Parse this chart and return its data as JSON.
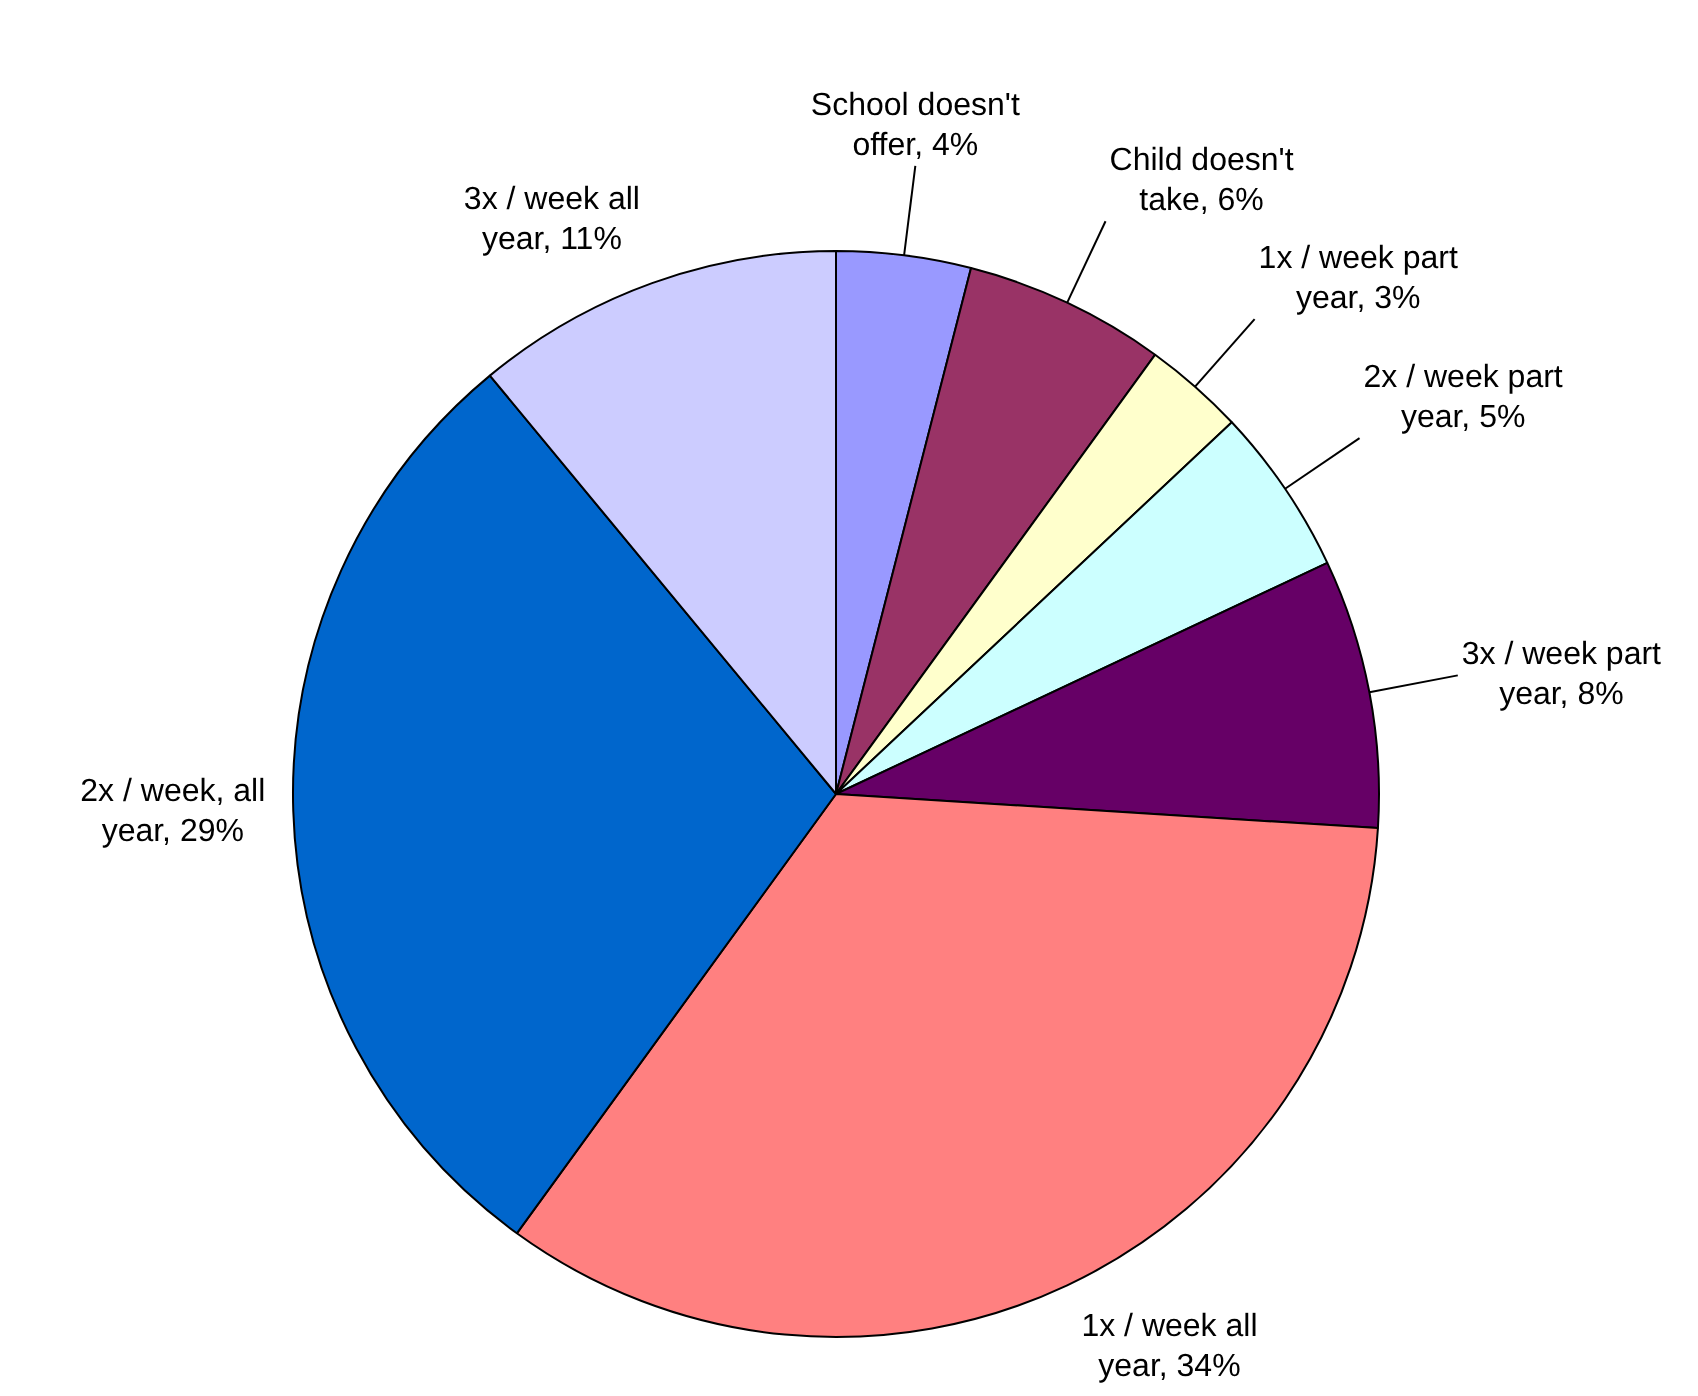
{
  "chart_data": {
    "type": "pie",
    "categories": [
      "School doesn't offer",
      "Child doesn't take",
      "1x / week part year",
      "2x / week part year",
      "3x / week part year",
      "1x / week all year",
      "2x / week, all year",
      "3x / week all year"
    ],
    "values": [
      4,
      6,
      3,
      5,
      8,
      34,
      29,
      11
    ],
    "value_labels": [
      "4%",
      "6%",
      "3%",
      "5%",
      "8%",
      "34%",
      "29%",
      "11%"
    ],
    "colors": [
      "#9999ff",
      "#993366",
      "#ffffcc",
      "#ccffff",
      "#660066",
      "#ff8080",
      "#0066cc",
      "#ccccff"
    ],
    "legend": false
  }
}
